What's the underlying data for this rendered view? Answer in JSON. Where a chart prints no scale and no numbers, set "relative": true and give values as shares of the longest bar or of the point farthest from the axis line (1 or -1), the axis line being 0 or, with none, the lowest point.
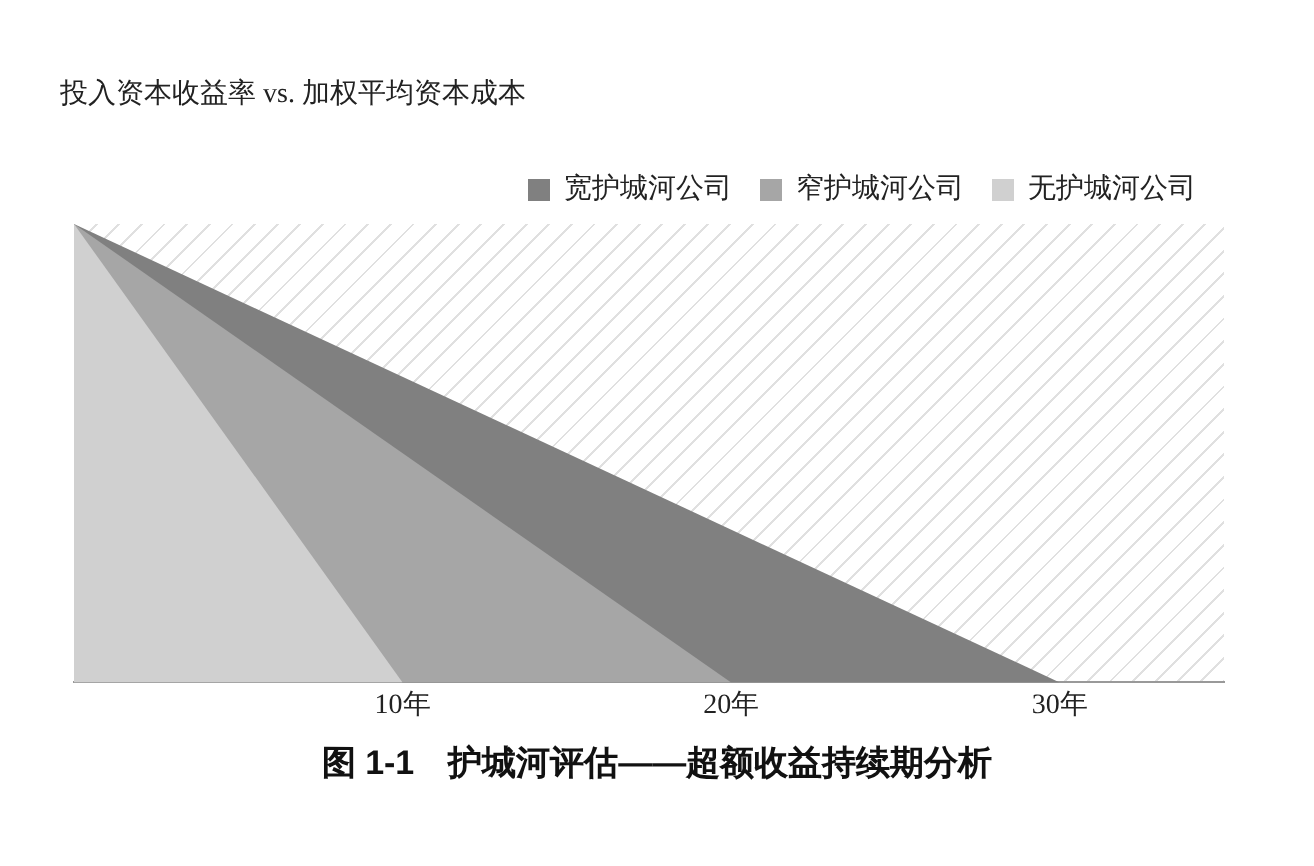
{
  "chart_data": {
    "type": "area",
    "title": "图 1-1　护城河评估——超额收益持续期分析",
    "ylabel": "投入资本收益率 vs. 加权平均资本成本",
    "relative": true,
    "series": [
      {
        "name": "宽护城河公司",
        "color": "#808080",
        "x": [
          0,
          30
        ],
        "values": [
          1,
          0
        ]
      },
      {
        "name": "窄护城河公司",
        "color": "#a6a6a6",
        "x": [
          0,
          20
        ],
        "values": [
          1,
          0
        ]
      },
      {
        "name": "无护城河公司",
        "color": "#d0d0d0",
        "x": [
          0,
          10
        ],
        "values": [
          1,
          0
        ]
      }
    ],
    "xlim": [
      0,
      35
    ],
    "xticks": [
      {
        "value": 10,
        "label": "10年"
      },
      {
        "value": 20,
        "label": "20年"
      },
      {
        "value": 30,
        "label": "30年"
      }
    ],
    "grid": false,
    "legend": "top right"
  }
}
